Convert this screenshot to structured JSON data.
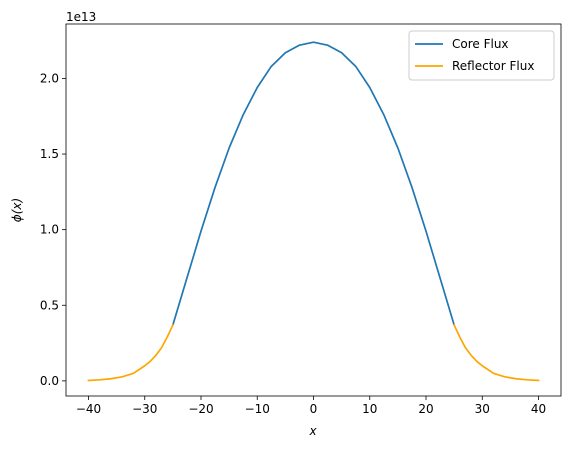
{
  "chart_data": {
    "type": "line",
    "title": "",
    "xlabel": "x",
    "ylabel": "ϕ(x)",
    "y_offset_label": "1e13",
    "xlim": [
      -44,
      44
    ],
    "ylim": [
      -0.1,
      2.36
    ],
    "x_ticks": [
      -40,
      -30,
      -20,
      -10,
      0,
      10,
      20,
      30,
      40
    ],
    "y_ticks": [
      0.0,
      0.5,
      1.0,
      1.5,
      2.0
    ],
    "x_tick_labels": [
      "−40",
      "−30",
      "−20",
      "−10",
      "0",
      "10",
      "20",
      "30",
      "40"
    ],
    "y_tick_labels": [
      "0.0",
      "0.5",
      "1.0",
      "1.5",
      "2.0"
    ],
    "grid": false,
    "legend_position": "top-right",
    "series": [
      {
        "name": "Core Flux",
        "color": "#1f77b4",
        "x": [
          -25,
          -22.5,
          -20,
          -17.5,
          -15,
          -12.5,
          -10,
          -7.5,
          -5,
          -2.5,
          0,
          2.5,
          5,
          7.5,
          10,
          12.5,
          15,
          17.5,
          20,
          22.5,
          25
        ],
        "y": [
          0.37,
          0.68,
          0.99,
          1.28,
          1.54,
          1.76,
          1.94,
          2.08,
          2.17,
          2.22,
          2.24,
          2.22,
          2.17,
          2.08,
          1.94,
          1.76,
          1.54,
          1.28,
          0.99,
          0.68,
          0.37
        ]
      },
      {
        "name": "Reflector Flux",
        "color": "#ffa500",
        "x": [
          -40,
          -38,
          -36,
          -34,
          -32,
          -30,
          -29,
          -28,
          -27,
          -26,
          -25,
          25,
          26,
          27,
          28,
          29,
          30,
          32,
          34,
          36,
          38,
          40
        ],
        "y": [
          0.003,
          0.007,
          0.014,
          0.027,
          0.05,
          0.1,
          0.13,
          0.17,
          0.22,
          0.29,
          0.37,
          0.37,
          0.29,
          0.22,
          0.17,
          0.13,
          0.1,
          0.05,
          0.027,
          0.014,
          0.007,
          0.003
        ]
      }
    ]
  }
}
